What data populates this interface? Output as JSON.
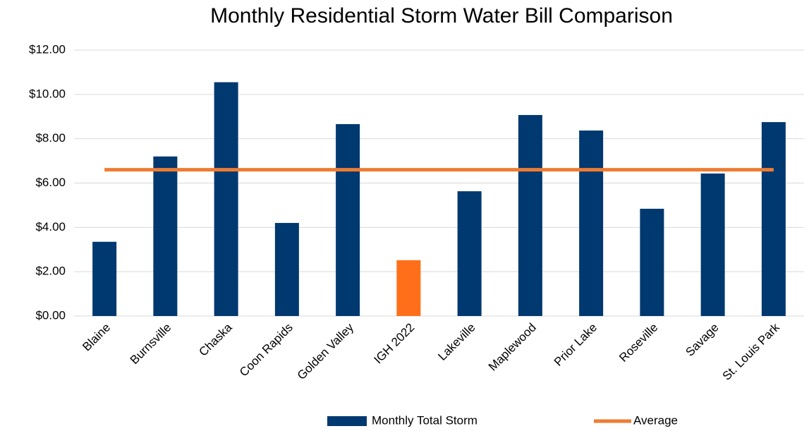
{
  "chart_data": {
    "type": "bar",
    "title": "Monthly Residential Storm Water Bill Comparison",
    "categories": [
      "Blaine",
      "Burnsville",
      "Chaska",
      "Coon Rapids",
      "Golden Valley",
      "IGH  2022",
      "Lakeville",
      "Maplewood",
      "Prior Lake",
      "Roseville",
      "Savage",
      "St. Louis Park"
    ],
    "series": [
      {
        "name": "Monthly Total Storm",
        "type": "bar",
        "color": "#003870",
        "colors": [
          "#003870",
          "#003870",
          "#003870",
          "#003870",
          "#003870",
          "#ff6f1a",
          "#003870",
          "#003870",
          "#003870",
          "#003870",
          "#003870",
          "#003870"
        ],
        "values": [
          3.35,
          7.2,
          10.55,
          4.2,
          8.66,
          2.52,
          5.63,
          9.07,
          8.37,
          4.84,
          6.43,
          8.75
        ]
      },
      {
        "name": "Average",
        "type": "line",
        "color": "#ed7d31",
        "values": [
          6.6,
          6.6,
          6.6,
          6.6,
          6.6,
          6.6,
          6.6,
          6.6,
          6.6,
          6.6,
          6.6,
          6.6
        ]
      }
    ],
    "ylim": [
      0,
      12
    ],
    "yticks": [
      {
        "value": 0,
        "label": "$0.00"
      },
      {
        "value": 2,
        "label": "$2.00"
      },
      {
        "value": 4,
        "label": "$4.00"
      },
      {
        "value": 6,
        "label": "$6.00"
      },
      {
        "value": 8,
        "label": "$8.00"
      },
      {
        "value": 10,
        "label": "$10.00"
      },
      {
        "value": 12,
        "label": "$12.00"
      }
    ],
    "grid": true,
    "legend": "bottom"
  }
}
